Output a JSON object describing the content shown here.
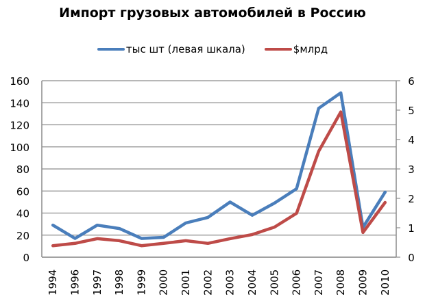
{
  "chart_data": {
    "type": "line",
    "title": "Импорт грузовых автомобилей в Россию",
    "xlabel": "",
    "ylabel": "",
    "categories": [
      "1994",
      "1996",
      "1997",
      "1998",
      "1999",
      "2000",
      "2001",
      "2002",
      "2003",
      "2004",
      "2005",
      "2006",
      "2007",
      "2008",
      "2009",
      "2010"
    ],
    "series": [
      {
        "name": "тыс шт (левая шкала)",
        "axis": "left",
        "color": "#4a7ebb",
        "values": [
          29,
          17,
          29,
          26,
          17,
          18,
          31,
          36,
          50,
          38,
          49,
          62,
          135,
          149,
          27,
          59
        ]
      },
      {
        "name": "$млрд",
        "axis": "right",
        "color": "#be4b48",
        "values": [
          0.39,
          0.47,
          0.63,
          0.56,
          0.39,
          0.47,
          0.56,
          0.47,
          0.63,
          0.77,
          1.02,
          1.49,
          3.6,
          4.94,
          0.84,
          1.86
        ]
      }
    ],
    "ylim_left": [
      0,
      160
    ],
    "yticks_left": [
      "0",
      "20",
      "40",
      "60",
      "80",
      "100",
      "120",
      "140",
      "160"
    ],
    "ylim_right": [
      0,
      6
    ],
    "yticks_right": [
      "0",
      "1",
      "2",
      "3",
      "4",
      "5",
      "6"
    ],
    "grid": true,
    "legend_position": "top"
  }
}
